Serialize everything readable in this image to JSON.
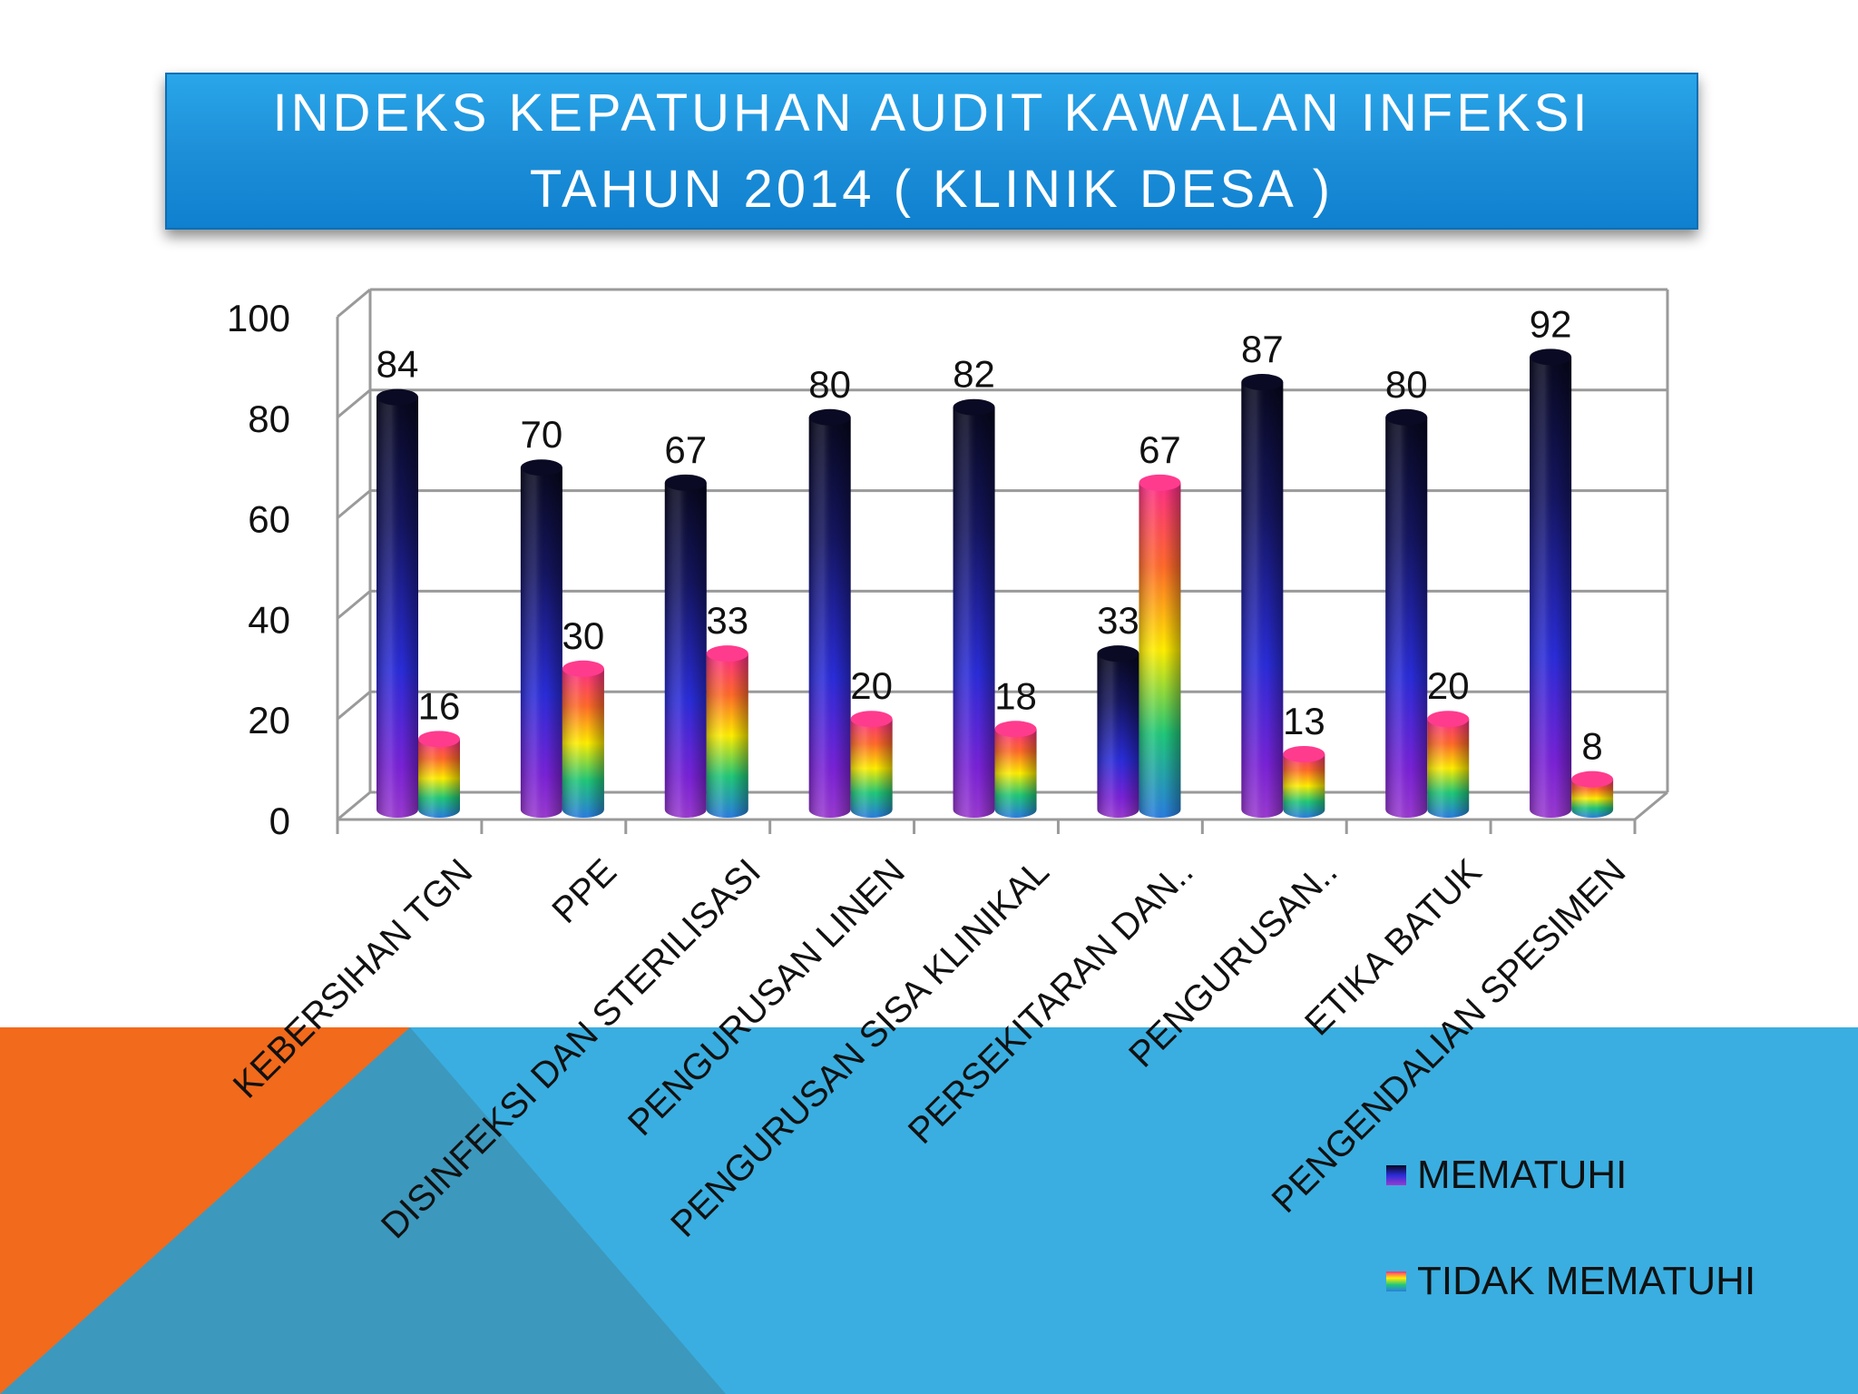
{
  "slide": {
    "title_lines": [
      "INDEKS KEPATUHAN AUDIT KAWALAN INFEKSI",
      "TAHUN 2014 ( KLINIK DESA )"
    ],
    "colors": {
      "orange": "#f26a1b",
      "blue": "#3aaee0",
      "overlap": "#3d98bd",
      "banner": "#1d8fd8"
    }
  },
  "chart_data": {
    "type": "bar",
    "categories": [
      "KEBERSIHAN TGN",
      "PPE",
      "DISINFEKSI DAN STERILISASI",
      "PENGURUSAN LINEN",
      "PENGURUSAN SISA KLINIKAL",
      "PERSEKITARAN DAN..",
      "PENGURUSAN..",
      "ETIKA BATUK",
      "PENGENDALIAN SPESIMEN"
    ],
    "series": [
      {
        "name": "MEMATUHI",
        "values": [
          84,
          70,
          67,
          80,
          82,
          33,
          87,
          80,
          92
        ],
        "color": "navy-blue-purple gradient"
      },
      {
        "name": "TIDAK MEMATUHI",
        "values": [
          16,
          30,
          33,
          20,
          18,
          67,
          13,
          20,
          8
        ],
        "color": "rainbow gradient"
      }
    ],
    "yticks": [
      "0",
      "20",
      "40",
      "60",
      "80",
      "100"
    ],
    "ylim": [
      0,
      100
    ],
    "grid": true,
    "legend": "bottom-right",
    "style": "3d-cylinder"
  }
}
